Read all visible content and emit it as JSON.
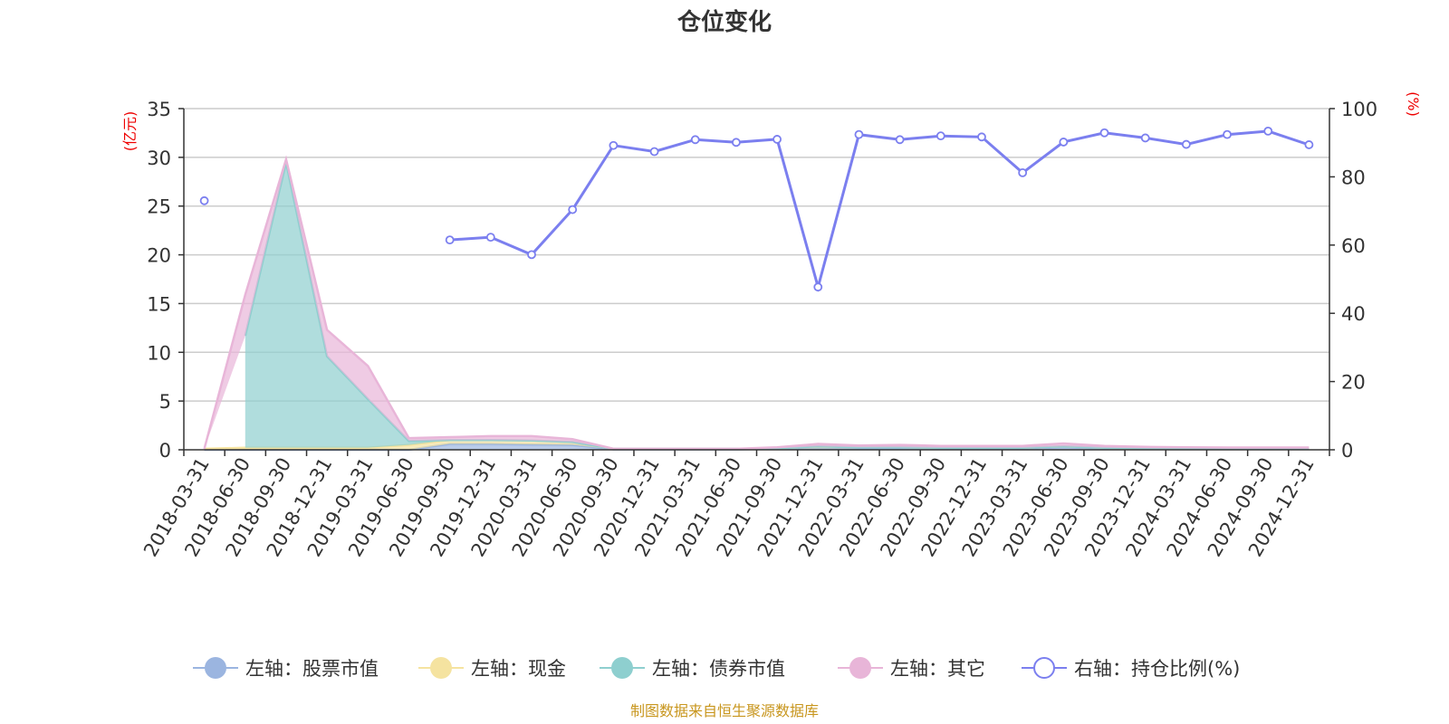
{
  "chart_data": {
    "type": "area",
    "title": "仓位变化",
    "left_axis_unit": "(亿元)",
    "right_axis_unit": "(%)",
    "left_ylim": [
      0,
      35
    ],
    "left_yticks": [
      0,
      5,
      10,
      15,
      20,
      25,
      30,
      35
    ],
    "right_ylim": [
      0,
      100
    ],
    "right_yticks": [
      0,
      20,
      40,
      60,
      80,
      100
    ],
    "grid": true,
    "legend_position": "bottom",
    "categories": [
      "2018-03-31",
      "2018-06-30",
      "2018-09-30",
      "2018-12-31",
      "2019-03-31",
      "2019-06-30",
      "2019-09-30",
      "2019-12-31",
      "2020-03-31",
      "2020-06-30",
      "2020-09-30",
      "2020-12-31",
      "2021-03-31",
      "2021-06-30",
      "2021-09-30",
      "2021-12-31",
      "2022-03-31",
      "2022-06-30",
      "2022-09-30",
      "2022-12-31",
      "2023-03-31",
      "2023-06-30",
      "2023-09-30",
      "2023-12-31",
      "2024-03-31",
      "2024-06-30",
      "2024-09-30",
      "2024-12-31"
    ],
    "series": [
      {
        "name": "左轴：股票市值",
        "axis": "left",
        "color": "#9bb5e0",
        "values": [
          0,
          0,
          0,
          0,
          0,
          0,
          0.6,
          0.6,
          0.55,
          0.5,
          0.05,
          0.05,
          0.05,
          0.05,
          0.1,
          0.15,
          0.15,
          0.15,
          0.15,
          0.15,
          0.15,
          0.25,
          0.15,
          0.1,
          0.1,
          0.08,
          0.08,
          0.08
        ]
      },
      {
        "name": "左轴：现金",
        "axis": "left",
        "color": "#f5e3a0",
        "values": [
          0.1,
          0.2,
          0.2,
          0.2,
          0.2,
          0.5,
          0.4,
          0.4,
          0.4,
          0.3,
          0.05,
          0.05,
          0.05,
          0.05,
          0.05,
          0.2,
          0.1,
          0.1,
          0.05,
          0.05,
          0.05,
          0.1,
          0.05,
          0.05,
          0.05,
          0.05,
          0.05,
          0.05
        ]
      },
      {
        "name": "左轴：债券市值",
        "axis": "left",
        "color": "#8ecfcf",
        "values": [
          null,
          11.5,
          29.3,
          9.4,
          5.0,
          0.4,
          0,
          0,
          0,
          0,
          0,
          0,
          0,
          0,
          0,
          0,
          0,
          0,
          0,
          0,
          0,
          0,
          0,
          0,
          0,
          0,
          0,
          0
        ]
      },
      {
        "name": "左轴：其它",
        "axis": "left",
        "color": "#e8b5d8",
        "values": [
          0,
          4.2,
          0.3,
          2.7,
          3.4,
          0.3,
          0.3,
          0.4,
          0.45,
          0.3,
          0,
          0,
          0,
          0,
          0.1,
          0.25,
          0.2,
          0.25,
          0.2,
          0.2,
          0.2,
          0.3,
          0.2,
          0.15,
          0.1,
          0.1,
          0.1,
          0.1
        ]
      },
      {
        "name": "右轴：持仓比例(%)",
        "axis": "right",
        "color": "#7b7fef",
        "values": [
          73,
          null,
          null,
          null,
          null,
          null,
          61.5,
          62.3,
          57.2,
          70.4,
          89.2,
          87.4,
          90.9,
          90.1,
          91.0,
          47.7,
          92.4,
          90.9,
          92.0,
          91.7,
          81.2,
          90.2,
          92.9,
          91.4,
          89.5,
          92.4,
          93.4,
          89.4
        ]
      }
    ]
  },
  "legend": [
    {
      "label": "左轴：股票市值",
      "icon": "filled-circle",
      "color": "#9bb5e0"
    },
    {
      "label": "左轴：现金",
      "icon": "filled-circle",
      "color": "#f5e3a0"
    },
    {
      "label": "左轴：债券市值",
      "icon": "filled-circle",
      "color": "#8ecfcf"
    },
    {
      "label": "左轴：其它",
      "icon": "filled-circle",
      "color": "#e8b5d8"
    },
    {
      "label": "右轴：持仓比例(%)",
      "icon": "hollow-circle",
      "color": "#7b7fef"
    }
  ],
  "source": "制图数据来自恒生聚源数据库"
}
